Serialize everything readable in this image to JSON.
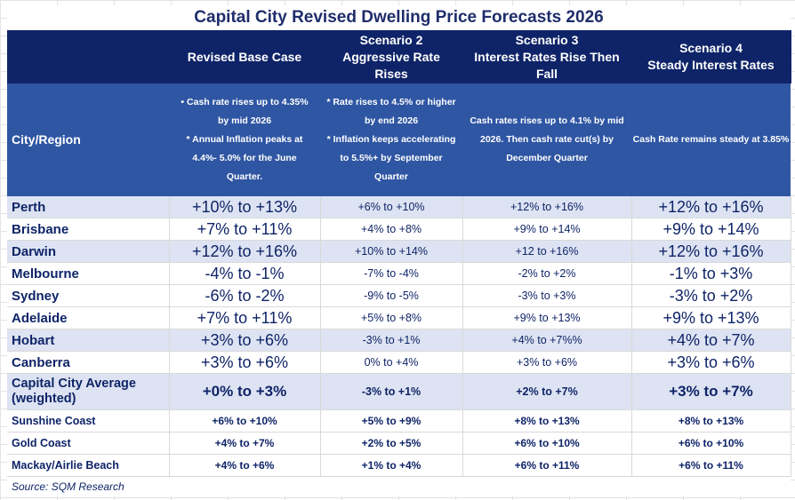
{
  "title": "Capital City  Revised Dwelling Price Forecasts 2026",
  "columns": {
    "city_header": "City/Region",
    "scenarios": [
      {
        "name_line1": "Revised Base Case",
        "name_line2": "",
        "name_line3": "",
        "desc_lines": [
          "• Cash rate rises up to 4.35%",
          "by mid 2026",
          "* Annual Inflation peaks at",
          "4.4%- 5.0% for the June",
          "Quarter."
        ]
      },
      {
        "name_line1": "Scenario 2",
        "name_line2": "Aggressive Rate",
        "name_line3": "Rises",
        "desc_lines": [
          "* Rate rises to 4.5% or higher",
          "by end 2026",
          "* Inflation keeps accelerating",
          "to 5.5%+  by September",
          "Quarter"
        ]
      },
      {
        "name_line1": "Scenario 3",
        "name_line2": "Interest Rates Rise Then",
        "name_line3": "Fall",
        "desc_lines": [
          "Cash rates rises up to 4.1% by mid",
          "2026. Then cash rate cut(s) by",
          "December Quarter"
        ]
      },
      {
        "name_line1": "Scenario 4",
        "name_line2": "Steady Interest Rates",
        "name_line3": "",
        "desc_lines": [
          "Cash Rate remains steady at 3.85%"
        ]
      }
    ]
  },
  "rows": [
    {
      "name": "Perth",
      "values": [
        "+10% to +13%",
        "+6% to +10%",
        "+12% to +16%",
        "+12% to +16%"
      ]
    },
    {
      "name": "Brisbane",
      "values": [
        "+7% to +11%",
        "+4% to +8%",
        "+9% to +14%",
        "+9% to +14%"
      ]
    },
    {
      "name": "Darwin",
      "values": [
        "+12% to +16%",
        "+10% to +14%",
        "+12 to +16%",
        "+12% to +16%"
      ]
    },
    {
      "name": "Melbourne",
      "values": [
        "-4% to -1%",
        "-7% to -4%",
        "-2% to +2%",
        "-1% to +3%"
      ]
    },
    {
      "name": "Sydney",
      "values": [
        "-6% to -2%",
        "-9% to -5%",
        "-3% to +3%",
        "-3% to  +2%"
      ]
    },
    {
      "name": "Adelaide",
      "values": [
        "+7% to +11%",
        "+5% to +8%",
        "+9% to +13%",
        "+9% to +13%"
      ]
    },
    {
      "name": "Hobart",
      "values": [
        "+3% to +6%",
        "-3% to +1%",
        "+4% to +7%%",
        "+4% to +7%"
      ]
    },
    {
      "name": "Canberra",
      "values": [
        "+3% to +6%",
        "0% to +4%",
        "+3% to +6%",
        "+3% to +6%"
      ]
    }
  ],
  "average": {
    "name_line1": "Capital City Average",
    "name_line2": "(weighted)",
    "values": [
      "+0% to +3%",
      "-3% to +1%",
      "+2% to +7%",
      "+3% to +7%"
    ]
  },
  "regional": [
    {
      "name": "Sunshine Coast",
      "values": [
        "+6% to +10%",
        "+5% to +9%",
        "+8% to +13%",
        "+8% to +13%"
      ]
    },
    {
      "name": "Gold Coast",
      "values": [
        "+4% to +7%",
        "+2% to +5%",
        "+6% to +10%",
        "+6% to +10%"
      ]
    },
    {
      "name": "Mackay/Airlie Beach",
      "values": [
        "+4% to +6%",
        "+1% to +4%",
        "+6% to +11%",
        "+6% to +11%"
      ]
    }
  ],
  "source": "Source: SQM Research"
}
